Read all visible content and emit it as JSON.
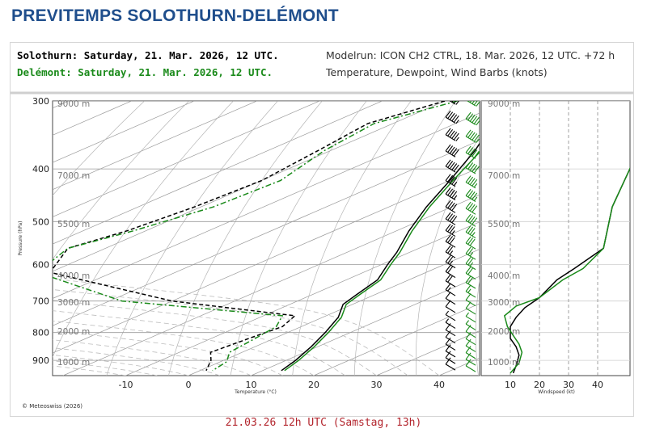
{
  "page": {
    "title": "PREVITEMPS SOLOTHURN-DELÉMONT",
    "footer": "21.03.26 12h UTC (Samstag, 13h)"
  },
  "header": {
    "station1": "Solothurn: Saturday, 21. Mar. 2026, 12 UTC.",
    "station2": "Delémont: Saturday, 21. Mar. 2026, 12 UTC.",
    "modelrun": "Modelrun: ICON CH2 CTRL, 18. Mar. 2026, 12 UTC. +72 h",
    "variables": "Temperature, Dewpoint, Wind Barbs (knots)",
    "copyright": "© Meteoswiss (2026)"
  },
  "colors": {
    "title": "#1f4e8c",
    "station1": "#000000",
    "station2": "#1a8a1a",
    "footer": "#b3262e",
    "grid": "#9a9a9a"
  },
  "chart_data": [
    {
      "type": "line",
      "name": "skew-t",
      "xlabel": "Temperature (°C)",
      "ylabel": "Pressure (hPa)",
      "x_ticks": [
        -10,
        0,
        10,
        20,
        30,
        40
      ],
      "y_ticks": [
        300,
        400,
        500,
        600,
        700,
        800,
        900
      ],
      "height_labels": [
        "9000 m",
        "7000 m",
        "5500 m",
        "4000 m",
        "3000 m",
        "2000 m",
        "1000 m"
      ],
      "height_pressures": [
        303,
        411,
        505,
        628,
        703,
        795,
        905
      ],
      "series": [
        {
          "name": "Solothurn",
          "kind": "temperature",
          "color": "#000000",
          "points": [
            [
              -50,
              300
            ],
            [
              -44,
              330
            ],
            [
              -37,
              370
            ],
            [
              -30,
              420
            ],
            [
              -24,
              470
            ],
            [
              -18,
              520
            ],
            [
              -12,
              570
            ],
            [
              -9,
              600
            ],
            [
              -5,
              640
            ],
            [
              -3,
              680
            ],
            [
              -1.5,
              710
            ],
            [
              2.5,
              750
            ],
            [
              6,
              800
            ],
            [
              9,
              850
            ],
            [
              11.5,
              900
            ],
            [
              13,
              940
            ]
          ]
        },
        {
          "name": "Delémont",
          "kind": "temperature",
          "color": "#1a8a1a",
          "points": [
            [
              -50,
              300
            ],
            [
              -43,
              330
            ],
            [
              -36,
              370
            ],
            [
              -29.5,
              420
            ],
            [
              -23.5,
              470
            ],
            [
              -17.5,
              520
            ],
            [
              -11.5,
              570
            ],
            [
              -8.5,
              600
            ],
            [
              -4.5,
              640
            ],
            [
              -2.5,
              680
            ],
            [
              -1,
              710
            ],
            [
              3,
              750
            ],
            [
              6.5,
              800
            ],
            [
              9.5,
              850
            ],
            [
              12,
              900
            ],
            [
              13.5,
              940
            ]
          ]
        },
        {
          "name": "Solothurn",
          "kind": "dewpoint",
          "color": "#000000",
          "points": [
            [
              -60,
              300
            ],
            [
              -64,
              330
            ],
            [
              -62,
              370
            ],
            [
              -60,
              420
            ],
            [
              -61,
              470
            ],
            [
              -63,
              520
            ],
            [
              -66,
              560
            ],
            [
              -60,
              620
            ],
            [
              -30,
              700
            ],
            [
              -5,
              745
            ],
            [
              -3,
              780
            ],
            [
              -4,
              820
            ],
            [
              -5,
              870
            ],
            [
              -2,
              900
            ],
            [
              1,
              940
            ]
          ]
        },
        {
          "name": "Delémont",
          "kind": "dewpoint",
          "color": "#1a8a1a",
          "points": [
            [
              -58,
              300
            ],
            [
              -63,
              330
            ],
            [
              -61,
              370
            ],
            [
              -57,
              420
            ],
            [
              -58,
              470
            ],
            [
              -62,
              520
            ],
            [
              -66,
              560
            ],
            [
              -62,
              620
            ],
            [
              -38,
              700
            ],
            [
              -7,
              745
            ],
            [
              -4,
              780
            ],
            [
              -3,
              820
            ],
            [
              -2,
              870
            ],
            [
              1,
              905
            ],
            [
              2,
              940
            ]
          ]
        }
      ],
      "wind_barbs": {
        "pressures": [
          300,
          325,
          350,
          375,
          400,
          425,
          450,
          475,
          500,
          525,
          550,
          575,
          600,
          625,
          650,
          675,
          700,
          725,
          750,
          775,
          800,
          825,
          850,
          875,
          900,
          925
        ],
        "station1_speeds": [
          60,
          55,
          55,
          50,
          50,
          45,
          45,
          40,
          40,
          35,
          30,
          25,
          25,
          20,
          20,
          15,
          10,
          10,
          5,
          5,
          10,
          10,
          10,
          10,
          10,
          10
        ],
        "station2_speeds": [
          60,
          60,
          55,
          50,
          50,
          45,
          45,
          40,
          40,
          35,
          30,
          25,
          25,
          20,
          20,
          15,
          10,
          10,
          5,
          5,
          10,
          10,
          10,
          10,
          10,
          10
        ]
      }
    },
    {
      "type": "line",
      "name": "windspeed-profile",
      "xlabel": "Windspeed (kt)",
      "x_ticks": [
        10,
        20,
        30,
        40
      ],
      "height_labels": [
        "9000 m",
        "7000 m",
        "5500 m",
        "4000 m",
        "3000 m",
        "2000 m",
        "1000 m"
      ],
      "height_pressures": [
        303,
        411,
        505,
        628,
        703,
        795,
        905
      ],
      "series": [
        {
          "name": "Solothurn",
          "color": "#000000",
          "points": [
            [
              52,
              390
            ],
            [
              45,
              470
            ],
            [
              42,
              560
            ],
            [
              32,
              610
            ],
            [
              26,
              640
            ],
            [
              20,
              690
            ],
            [
              15,
              720
            ],
            [
              12,
              750
            ],
            [
              10,
              780
            ],
            [
              10,
              820
            ],
            [
              12,
              850
            ],
            [
              13,
              880
            ],
            [
              12,
              920
            ],
            [
              11,
              950
            ]
          ]
        },
        {
          "name": "Delémont",
          "color": "#1a8a1a",
          "points": [
            [
              52,
              390
            ],
            [
              45,
              470
            ],
            [
              42,
              560
            ],
            [
              35,
              610
            ],
            [
              28,
              640
            ],
            [
              20,
              690
            ],
            [
              12,
              715
            ],
            [
              8,
              745
            ],
            [
              9,
              780
            ],
            [
              11,
              810
            ],
            [
              13,
              840
            ],
            [
              14,
              870
            ],
            [
              13,
              910
            ],
            [
              10,
              950
            ]
          ]
        }
      ]
    }
  ]
}
